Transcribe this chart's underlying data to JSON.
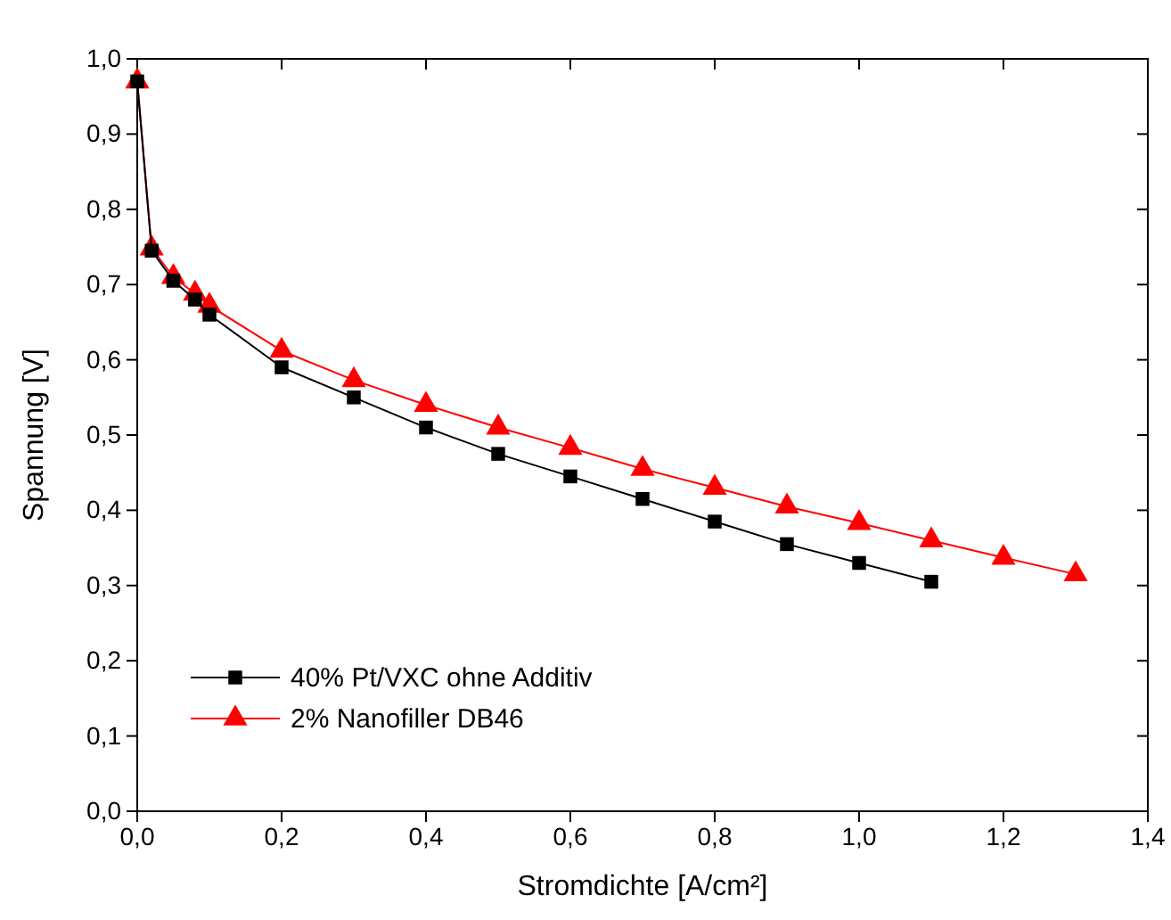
{
  "chart_data": {
    "type": "line",
    "xlabel": "Stromdichte [A/cm²]",
    "ylabel": "Spannung [V]",
    "xlim": [
      0,
      1.4
    ],
    "ylim": [
      0,
      1.0
    ],
    "xticks": [
      {
        "value": 0,
        "label": "0,0"
      },
      {
        "value": 0.2,
        "label": "0,2"
      },
      {
        "value": 0.4,
        "label": "0,4"
      },
      {
        "value": 0.6,
        "label": "0,6"
      },
      {
        "value": 0.8,
        "label": "0,8"
      },
      {
        "value": 1.0,
        "label": "1,0"
      },
      {
        "value": 1.2,
        "label": "1,2"
      },
      {
        "value": 1.4,
        "label": "1,4"
      }
    ],
    "yticks": [
      {
        "value": 0,
        "label": "0,0"
      },
      {
        "value": 0.1,
        "label": "0,1"
      },
      {
        "value": 0.2,
        "label": "0,2"
      },
      {
        "value": 0.3,
        "label": "0,3"
      },
      {
        "value": 0.4,
        "label": "0,4"
      },
      {
        "value": 0.5,
        "label": "0,5"
      },
      {
        "value": 0.6,
        "label": "0,6"
      },
      {
        "value": 0.7,
        "label": "0,7"
      },
      {
        "value": 0.8,
        "label": "0,8"
      },
      {
        "value": 0.9,
        "label": "0,9"
      },
      {
        "value": 1.0,
        "label": "1,0"
      }
    ],
    "legend": "bottom left",
    "grid": false,
    "series": [
      {
        "name": "40% Pt/VXC ohne Additiv",
        "color": "#000000",
        "marker": "square",
        "x": [
          0,
          0.02,
          0.05,
          0.08,
          0.1,
          0.2,
          0.3,
          0.4,
          0.5,
          0.6,
          0.7,
          0.8,
          0.9,
          1.0,
          1.1
        ],
        "values": [
          0.97,
          0.745,
          0.705,
          0.68,
          0.66,
          0.59,
          0.55,
          0.51,
          0.475,
          0.445,
          0.415,
          0.385,
          0.355,
          0.33,
          0.305
        ]
      },
      {
        "name": "2% Nanofiller DB46",
        "color": "#ff0000",
        "marker": "triangle",
        "x": [
          0,
          0.02,
          0.05,
          0.08,
          0.1,
          0.2,
          0.3,
          0.4,
          0.5,
          0.6,
          0.7,
          0.8,
          0.9,
          1.0,
          1.1,
          1.2,
          1.3
        ],
        "values": [
          0.97,
          0.748,
          0.71,
          0.688,
          0.672,
          0.612,
          0.573,
          0.54,
          0.51,
          0.483,
          0.455,
          0.43,
          0.405,
          0.383,
          0.36,
          0.337,
          0.315
        ]
      }
    ]
  }
}
